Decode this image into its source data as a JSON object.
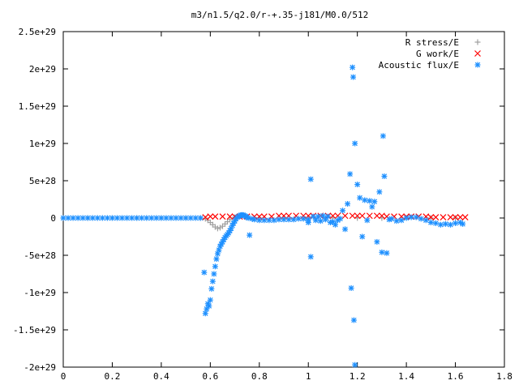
{
  "chart_data": {
    "type": "scatter",
    "title": "m3/n1.5/q2.0/r-+.35-j181/M0.0/512",
    "xlabel": "",
    "ylabel": "",
    "xlim": [
      0,
      1.8
    ],
    "ylim": [
      -2e+29,
      2.5e+29
    ],
    "grid": false,
    "legend_position": "top-right",
    "x_ticks": [
      "0",
      "0.2",
      "0.4",
      "0.6",
      "0.8",
      "1",
      "1.2",
      "1.4",
      "1.6",
      "1.8"
    ],
    "x_tick_values": [
      0,
      0.2,
      0.4,
      0.6,
      0.8,
      1.0,
      1.2,
      1.4,
      1.6,
      1.8
    ],
    "y_ticks": [
      "2.5e+29",
      "2e+29",
      "1.5e+29",
      "1e+29",
      "5e+28",
      "0",
      "-5e+28",
      "-1e+29",
      "-1.5e+29",
      "-2e+29"
    ],
    "y_tick_values": [
      2.5e+29,
      2e+29,
      1.5e+29,
      1e+29,
      5e+28,
      0,
      -5e+28,
      -1e+29,
      -1.5e+29,
      -2e+29
    ],
    "series": [
      {
        "name": "R stress/E",
        "color": "#a0a0a0",
        "marker": "plus",
        "points": [
          [
            0.0,
            0
          ],
          [
            0.1,
            0
          ],
          [
            0.2,
            0
          ],
          [
            0.3,
            0
          ],
          [
            0.4,
            0
          ],
          [
            0.5,
            0
          ],
          [
            0.56,
            0
          ],
          [
            0.58,
            -1e+27
          ],
          [
            0.59,
            -3e+27
          ],
          [
            0.6,
            -6e+27
          ],
          [
            0.61,
            -9e+27
          ],
          [
            0.62,
            -1.2e+28
          ],
          [
            0.63,
            -1.4e+28
          ],
          [
            0.64,
            -1.3e+28
          ],
          [
            0.65,
            -1.1e+28
          ],
          [
            0.66,
            -8e+27
          ],
          [
            0.67,
            -5e+27
          ],
          [
            0.68,
            -2e+27
          ],
          [
            0.7,
            1e+27
          ],
          [
            0.72,
            2e+27
          ],
          [
            0.75,
            1e+27
          ],
          [
            0.8,
            0
          ],
          [
            0.9,
            0
          ],
          [
            1.0,
            0
          ],
          [
            1.1,
            0
          ],
          [
            1.2,
            0
          ],
          [
            1.3,
            0
          ],
          [
            1.4,
            0
          ],
          [
            1.5,
            0
          ],
          [
            1.6,
            0
          ]
        ]
      },
      {
        "name": "G work/E",
        "color": "#ff0000",
        "marker": "cross",
        "points": [
          [
            0.58,
            1e+27
          ],
          [
            0.6,
            2e+27
          ],
          [
            0.62,
            2e+27
          ],
          [
            0.65,
            2e+27
          ],
          [
            0.68,
            2e+27
          ],
          [
            0.7,
            2e+27
          ],
          [
            0.72,
            2e+27
          ],
          [
            0.75,
            2e+27
          ],
          [
            0.78,
            2e+27
          ],
          [
            0.8,
            2e+27
          ],
          [
            0.82,
            2e+27
          ],
          [
            0.85,
            2e+27
          ],
          [
            0.88,
            3e+27
          ],
          [
            0.9,
            3e+27
          ],
          [
            0.92,
            3e+27
          ],
          [
            0.95,
            3e+27
          ],
          [
            0.98,
            3e+27
          ],
          [
            1.0,
            3e+27
          ],
          [
            1.02,
            3e+27
          ],
          [
            1.05,
            3e+27
          ],
          [
            1.08,
            3e+27
          ],
          [
            1.1,
            3e+27
          ],
          [
            1.12,
            3e+27
          ],
          [
            1.15,
            3e+27
          ],
          [
            1.18,
            3e+27
          ],
          [
            1.2,
            3e+27
          ],
          [
            1.22,
            3e+27
          ],
          [
            1.25,
            3e+27
          ],
          [
            1.28,
            3e+27
          ],
          [
            1.3,
            3e+27
          ],
          [
            1.32,
            2e+27
          ],
          [
            1.35,
            2e+27
          ],
          [
            1.38,
            2e+27
          ],
          [
            1.4,
            2e+27
          ],
          [
            1.42,
            2e+27
          ],
          [
            1.45,
            2e+27
          ],
          [
            1.48,
            2e+27
          ],
          [
            1.5,
            1e+27
          ],
          [
            1.52,
            1e+27
          ],
          [
            1.55,
            1e+27
          ],
          [
            1.58,
            1e+27
          ],
          [
            1.6,
            1e+27
          ],
          [
            1.62,
            1e+27
          ],
          [
            1.64,
            1e+27
          ]
        ]
      },
      {
        "name": "Acoustic flux/E",
        "color": "#1e90ff",
        "marker": "star",
        "points": [
          [
            0.0,
            0
          ],
          [
            0.02,
            0
          ],
          [
            0.04,
            0
          ],
          [
            0.06,
            0
          ],
          [
            0.08,
            0
          ],
          [
            0.1,
            0
          ],
          [
            0.12,
            0
          ],
          [
            0.14,
            0
          ],
          [
            0.16,
            0
          ],
          [
            0.18,
            0
          ],
          [
            0.2,
            0
          ],
          [
            0.22,
            0
          ],
          [
            0.24,
            0
          ],
          [
            0.26,
            0
          ],
          [
            0.28,
            0
          ],
          [
            0.3,
            0
          ],
          [
            0.32,
            0
          ],
          [
            0.34,
            0
          ],
          [
            0.36,
            0
          ],
          [
            0.38,
            0
          ],
          [
            0.4,
            0
          ],
          [
            0.42,
            0
          ],
          [
            0.44,
            0
          ],
          [
            0.46,
            0
          ],
          [
            0.48,
            0
          ],
          [
            0.5,
            0
          ],
          [
            0.52,
            0
          ],
          [
            0.54,
            0
          ],
          [
            0.56,
            0
          ],
          [
            0.575,
            -7.3e+28
          ],
          [
            0.58,
            -1.28e+29
          ],
          [
            0.585,
            -1.22e+29
          ],
          [
            0.59,
            -1.15e+29
          ],
          [
            0.595,
            -1.18e+29
          ],
          [
            0.6,
            -1.1e+29
          ],
          [
            0.605,
            -9.5e+28
          ],
          [
            0.61,
            -8.5e+28
          ],
          [
            0.615,
            -7.5e+28
          ],
          [
            0.62,
            -6.5e+28
          ],
          [
            0.625,
            -5.5e+28
          ],
          [
            0.63,
            -4.8e+28
          ],
          [
            0.635,
            -4.3e+28
          ],
          [
            0.64,
            -3.8e+28
          ],
          [
            0.645,
            -3.5e+28
          ],
          [
            0.65,
            -3.2e+28
          ],
          [
            0.655,
            -2.9e+28
          ],
          [
            0.66,
            -2.6e+28
          ],
          [
            0.665,
            -2.4e+28
          ],
          [
            0.67,
            -2.2e+28
          ],
          [
            0.675,
            -2e+28
          ],
          [
            0.68,
            -1.7e+28
          ],
          [
            0.685,
            -1.4e+28
          ],
          [
            0.69,
            -1e+28
          ],
          [
            0.695,
            -7e+27
          ],
          [
            0.7,
            -4e+27
          ],
          [
            0.705,
            -1e+27
          ],
          [
            0.71,
            1e+27
          ],
          [
            0.715,
            2e+27
          ],
          [
            0.72,
            3e+27
          ],
          [
            0.725,
            4e+27
          ],
          [
            0.73,
            4e+27
          ],
          [
            0.735,
            4e+27
          ],
          [
            0.74,
            3e+27
          ],
          [
            0.745,
            2e+27
          ],
          [
            0.75,
            1e+27
          ],
          [
            0.755,
            0
          ],
          [
            0.76,
            -2.3e+28
          ],
          [
            0.77,
            -1e+27
          ],
          [
            0.78,
            -2e+27
          ],
          [
            0.8,
            -3e+27
          ],
          [
            0.82,
            -3e+27
          ],
          [
            0.84,
            -3e+27
          ],
          [
            0.86,
            -3e+27
          ],
          [
            0.88,
            -2e+27
          ],
          [
            0.9,
            -2e+27
          ],
          [
            0.92,
            -2e+27
          ],
          [
            0.94,
            -2e+27
          ],
          [
            0.96,
            -1e+27
          ],
          [
            0.98,
            -1e+27
          ],
          [
            1.0,
            -2e+27
          ],
          [
            1.01,
            5.2e+28
          ],
          [
            1.01,
            -5.2e+28
          ],
          [
            1.0,
            -6e+27
          ],
          [
            1.02,
            2e+27
          ],
          [
            1.03,
            -3e+27
          ],
          [
            1.04,
            2e+27
          ],
          [
            1.05,
            -4e+27
          ],
          [
            1.06,
            3e+27
          ],
          [
            1.07,
            -2e+27
          ],
          [
            1.08,
            2e+27
          ],
          [
            1.09,
            -6e+27
          ],
          [
            1.1,
            -5e+27
          ],
          [
            1.11,
            -9e+27
          ],
          [
            1.12,
            -3e+27
          ],
          [
            1.13,
            -1e+27
          ],
          [
            1.14,
            1e+28
          ],
          [
            1.15,
            -1.5e+28
          ],
          [
            1.16,
            1.9e+28
          ],
          [
            1.17,
            5.9e+28
          ],
          [
            1.175,
            -9.4e+28
          ],
          [
            1.18,
            2.02e+29
          ],
          [
            1.183,
            1.89e+29
          ],
          [
            1.186,
            -1.37e+29
          ],
          [
            1.19,
            1e+29
          ],
          [
            1.19,
            -1.97e+29
          ],
          [
            1.2,
            4.5e+28
          ],
          [
            1.21,
            2.7e+28
          ],
          [
            1.22,
            -2.5e+28
          ],
          [
            1.23,
            2.4e+28
          ],
          [
            1.24,
            -3e+27
          ],
          [
            1.25,
            2.3e+28
          ],
          [
            1.26,
            1.5e+28
          ],
          [
            1.27,
            2.2e+28
          ],
          [
            1.28,
            -3.2e+28
          ],
          [
            1.29,
            3.5e+28
          ],
          [
            1.3,
            -4.6e+28
          ],
          [
            1.305,
            1.1e+29
          ],
          [
            1.31,
            5.6e+28
          ],
          [
            1.32,
            -4.7e+28
          ],
          [
            1.33,
            -2e+27
          ],
          [
            1.34,
            -1e+27
          ],
          [
            1.36,
            -4e+27
          ],
          [
            1.38,
            -3e+27
          ],
          [
            1.4,
            0
          ],
          [
            1.42,
            1e+27
          ],
          [
            1.44,
            1e+27
          ],
          [
            1.46,
            -1e+27
          ],
          [
            1.48,
            -3e+27
          ],
          [
            1.5,
            -6e+27
          ],
          [
            1.52,
            -7e+27
          ],
          [
            1.54,
            -9e+27
          ],
          [
            1.56,
            -8e+27
          ],
          [
            1.58,
            -9e+27
          ],
          [
            1.6,
            -7e+27
          ],
          [
            1.62,
            -6e+27
          ],
          [
            1.63,
            -8e+27
          ]
        ]
      }
    ]
  }
}
